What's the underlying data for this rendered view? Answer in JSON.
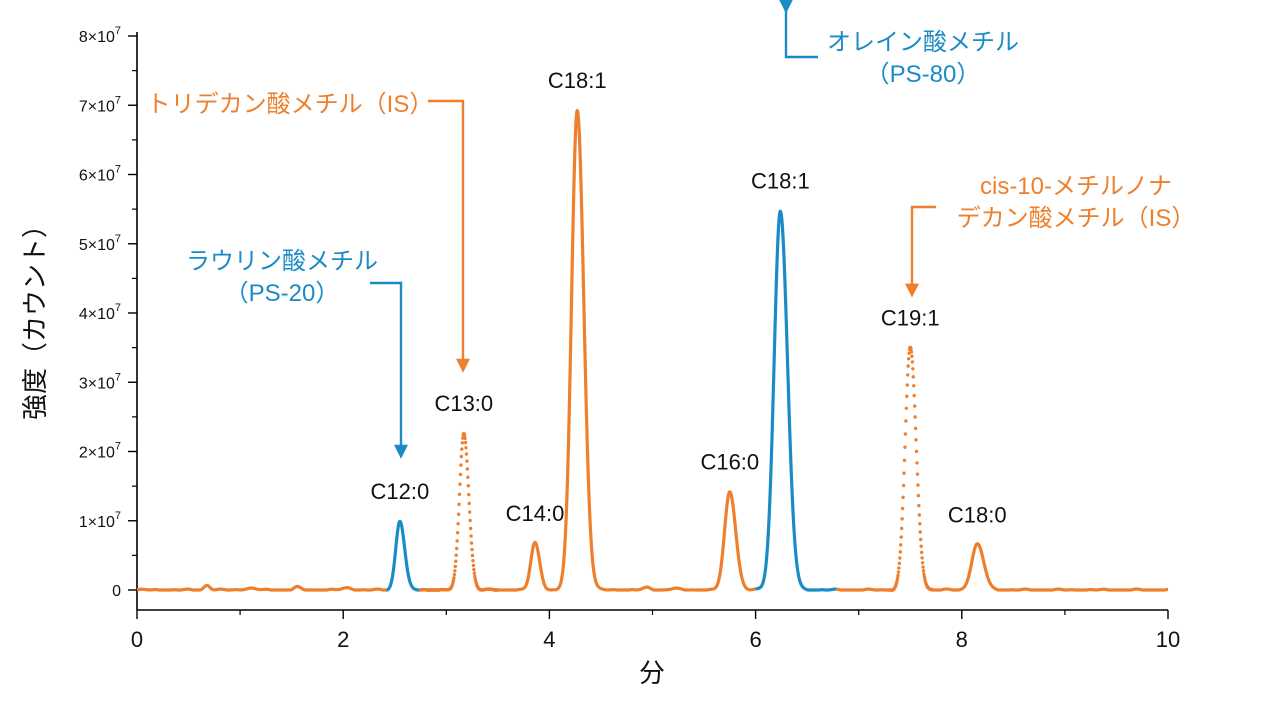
{
  "chart_data": {
    "type": "line",
    "xlabel": "分",
    "ylabel": "強度（カウント）",
    "xlim": [
      0,
      10
    ],
    "ylim": [
      0,
      8
    ],
    "xticks": [
      "0",
      "2",
      "4",
      "6",
      "8",
      "10"
    ],
    "yticks": [
      {
        "v": 0,
        "label": "0",
        "exp": ""
      },
      {
        "v": 1,
        "label": "1×10",
        "exp": "7"
      },
      {
        "v": 2,
        "label": "2×10",
        "exp": "7"
      },
      {
        "v": 3,
        "label": "3×10",
        "exp": "7"
      },
      {
        "v": 4,
        "label": "4×10",
        "exp": "7"
      },
      {
        "v": 5,
        "label": "5×10",
        "exp": "7"
      },
      {
        "v": 6,
        "label": "6×10",
        "exp": "7"
      },
      {
        "v": 7,
        "label": "7×10",
        "exp": "7"
      },
      {
        "v": 8,
        "label": "8×10",
        "exp": "7"
      }
    ],
    "y_unit_multiplier": 10000000,
    "colors": {
      "orange": "#EE7F2D",
      "blue": "#1A8BC4",
      "axis": "#000000",
      "text": "#111111"
    },
    "peaks": [
      {
        "label": "C12:0",
        "rt": 2.55,
        "height": 1.0,
        "width": 0.04,
        "color": "blue"
      },
      {
        "label": "C13:0",
        "rt": 3.17,
        "height": 2.27,
        "width": 0.042,
        "color": "orange"
      },
      {
        "label": "C14:0",
        "rt": 3.86,
        "height": 0.68,
        "width": 0.04,
        "color": "orange"
      },
      {
        "label": "C18:1",
        "rt": 4.27,
        "height": 6.93,
        "width": 0.055,
        "color": "orange"
      },
      {
        "label": "C16:0",
        "rt": 5.75,
        "height": 1.42,
        "width": 0.05,
        "color": "orange"
      },
      {
        "label": "C18:1",
        "rt": 6.24,
        "height": 5.48,
        "width": 0.06,
        "color": "blue"
      },
      {
        "label": "C19:1",
        "rt": 7.5,
        "height": 3.5,
        "width": 0.05,
        "color": "orange"
      },
      {
        "label": "C18:0",
        "rt": 8.15,
        "height": 0.66,
        "width": 0.055,
        "color": "orange"
      }
    ],
    "segments": [
      {
        "x0": 0.0,
        "x1": 2.42,
        "color": "orange",
        "style": "solid"
      },
      {
        "x0": 2.42,
        "x1": 2.75,
        "color": "blue",
        "style": "solid"
      },
      {
        "x0": 2.75,
        "x1": 3.5,
        "color": "orange",
        "style": "dotted"
      },
      {
        "x0": 3.5,
        "x1": 6.0,
        "color": "orange",
        "style": "solid"
      },
      {
        "x0": 6.0,
        "x1": 6.78,
        "color": "blue",
        "style": "solid"
      },
      {
        "x0": 6.78,
        "x1": 7.3,
        "color": "orange",
        "style": "solid"
      },
      {
        "x0": 7.3,
        "x1": 7.72,
        "color": "orange",
        "style": "dotted"
      },
      {
        "x0": 7.72,
        "x1": 10.0,
        "color": "orange",
        "style": "solid"
      }
    ],
    "annotations": [
      {
        "lines": [
          "トリデカン酸メチル（IS）"
        ],
        "color": "orange",
        "target_peak": 1
      },
      {
        "lines": [
          "ラウリン酸メチル",
          "（PS-20）"
        ],
        "color": "blue",
        "target_peak": 0
      },
      {
        "lines": [
          "オレイン酸メチル",
          "（PS-80）"
        ],
        "color": "blue",
        "target_peak": 5
      },
      {
        "lines": [
          "cis-10-メチルノナ",
          "デカン酸メチル（IS）"
        ],
        "color": "orange",
        "target_peak": 6
      }
    ]
  }
}
